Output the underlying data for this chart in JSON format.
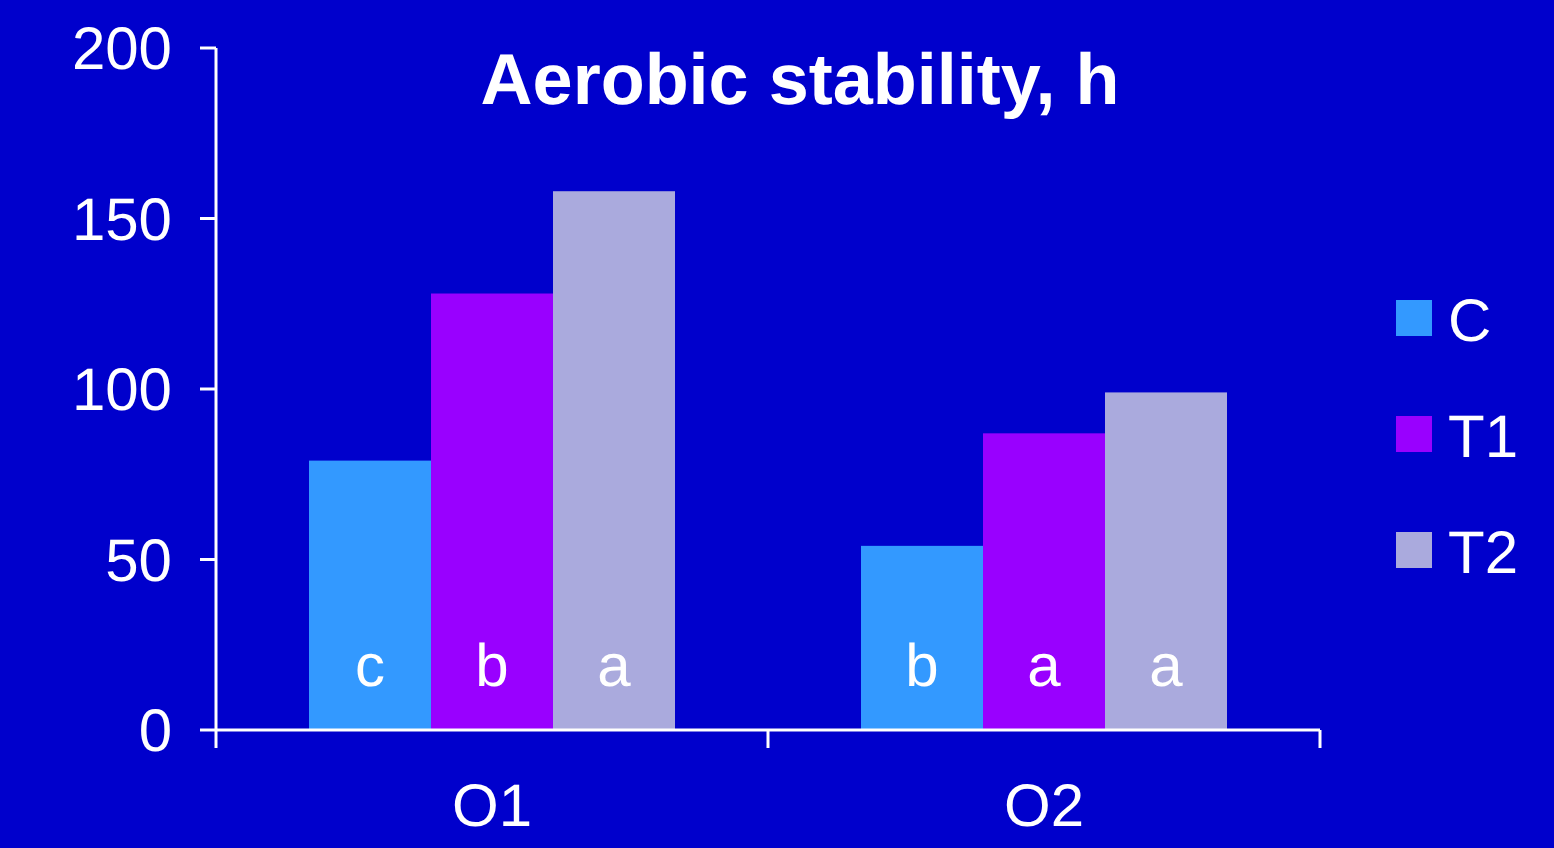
{
  "chart_data": {
    "type": "bar",
    "title": "Aerobic stability, h",
    "categories": [
      "O1",
      "O2"
    ],
    "series": [
      {
        "name": "C",
        "color": "#3399ff",
        "values": [
          79,
          54
        ],
        "value_labels": [
          "c",
          "b"
        ]
      },
      {
        "name": "T1",
        "color": "#9900ff",
        "values": [
          128,
          87
        ],
        "value_labels": [
          "b",
          "a"
        ]
      },
      {
        "name": "T2",
        "color": "#aaaadd",
        "values": [
          158,
          99
        ],
        "value_labels": [
          "a",
          "a"
        ]
      }
    ],
    "ylim": [
      0,
      200
    ],
    "yticks": [
      0,
      50,
      100,
      150,
      200
    ],
    "grid": false,
    "legend": "right"
  }
}
